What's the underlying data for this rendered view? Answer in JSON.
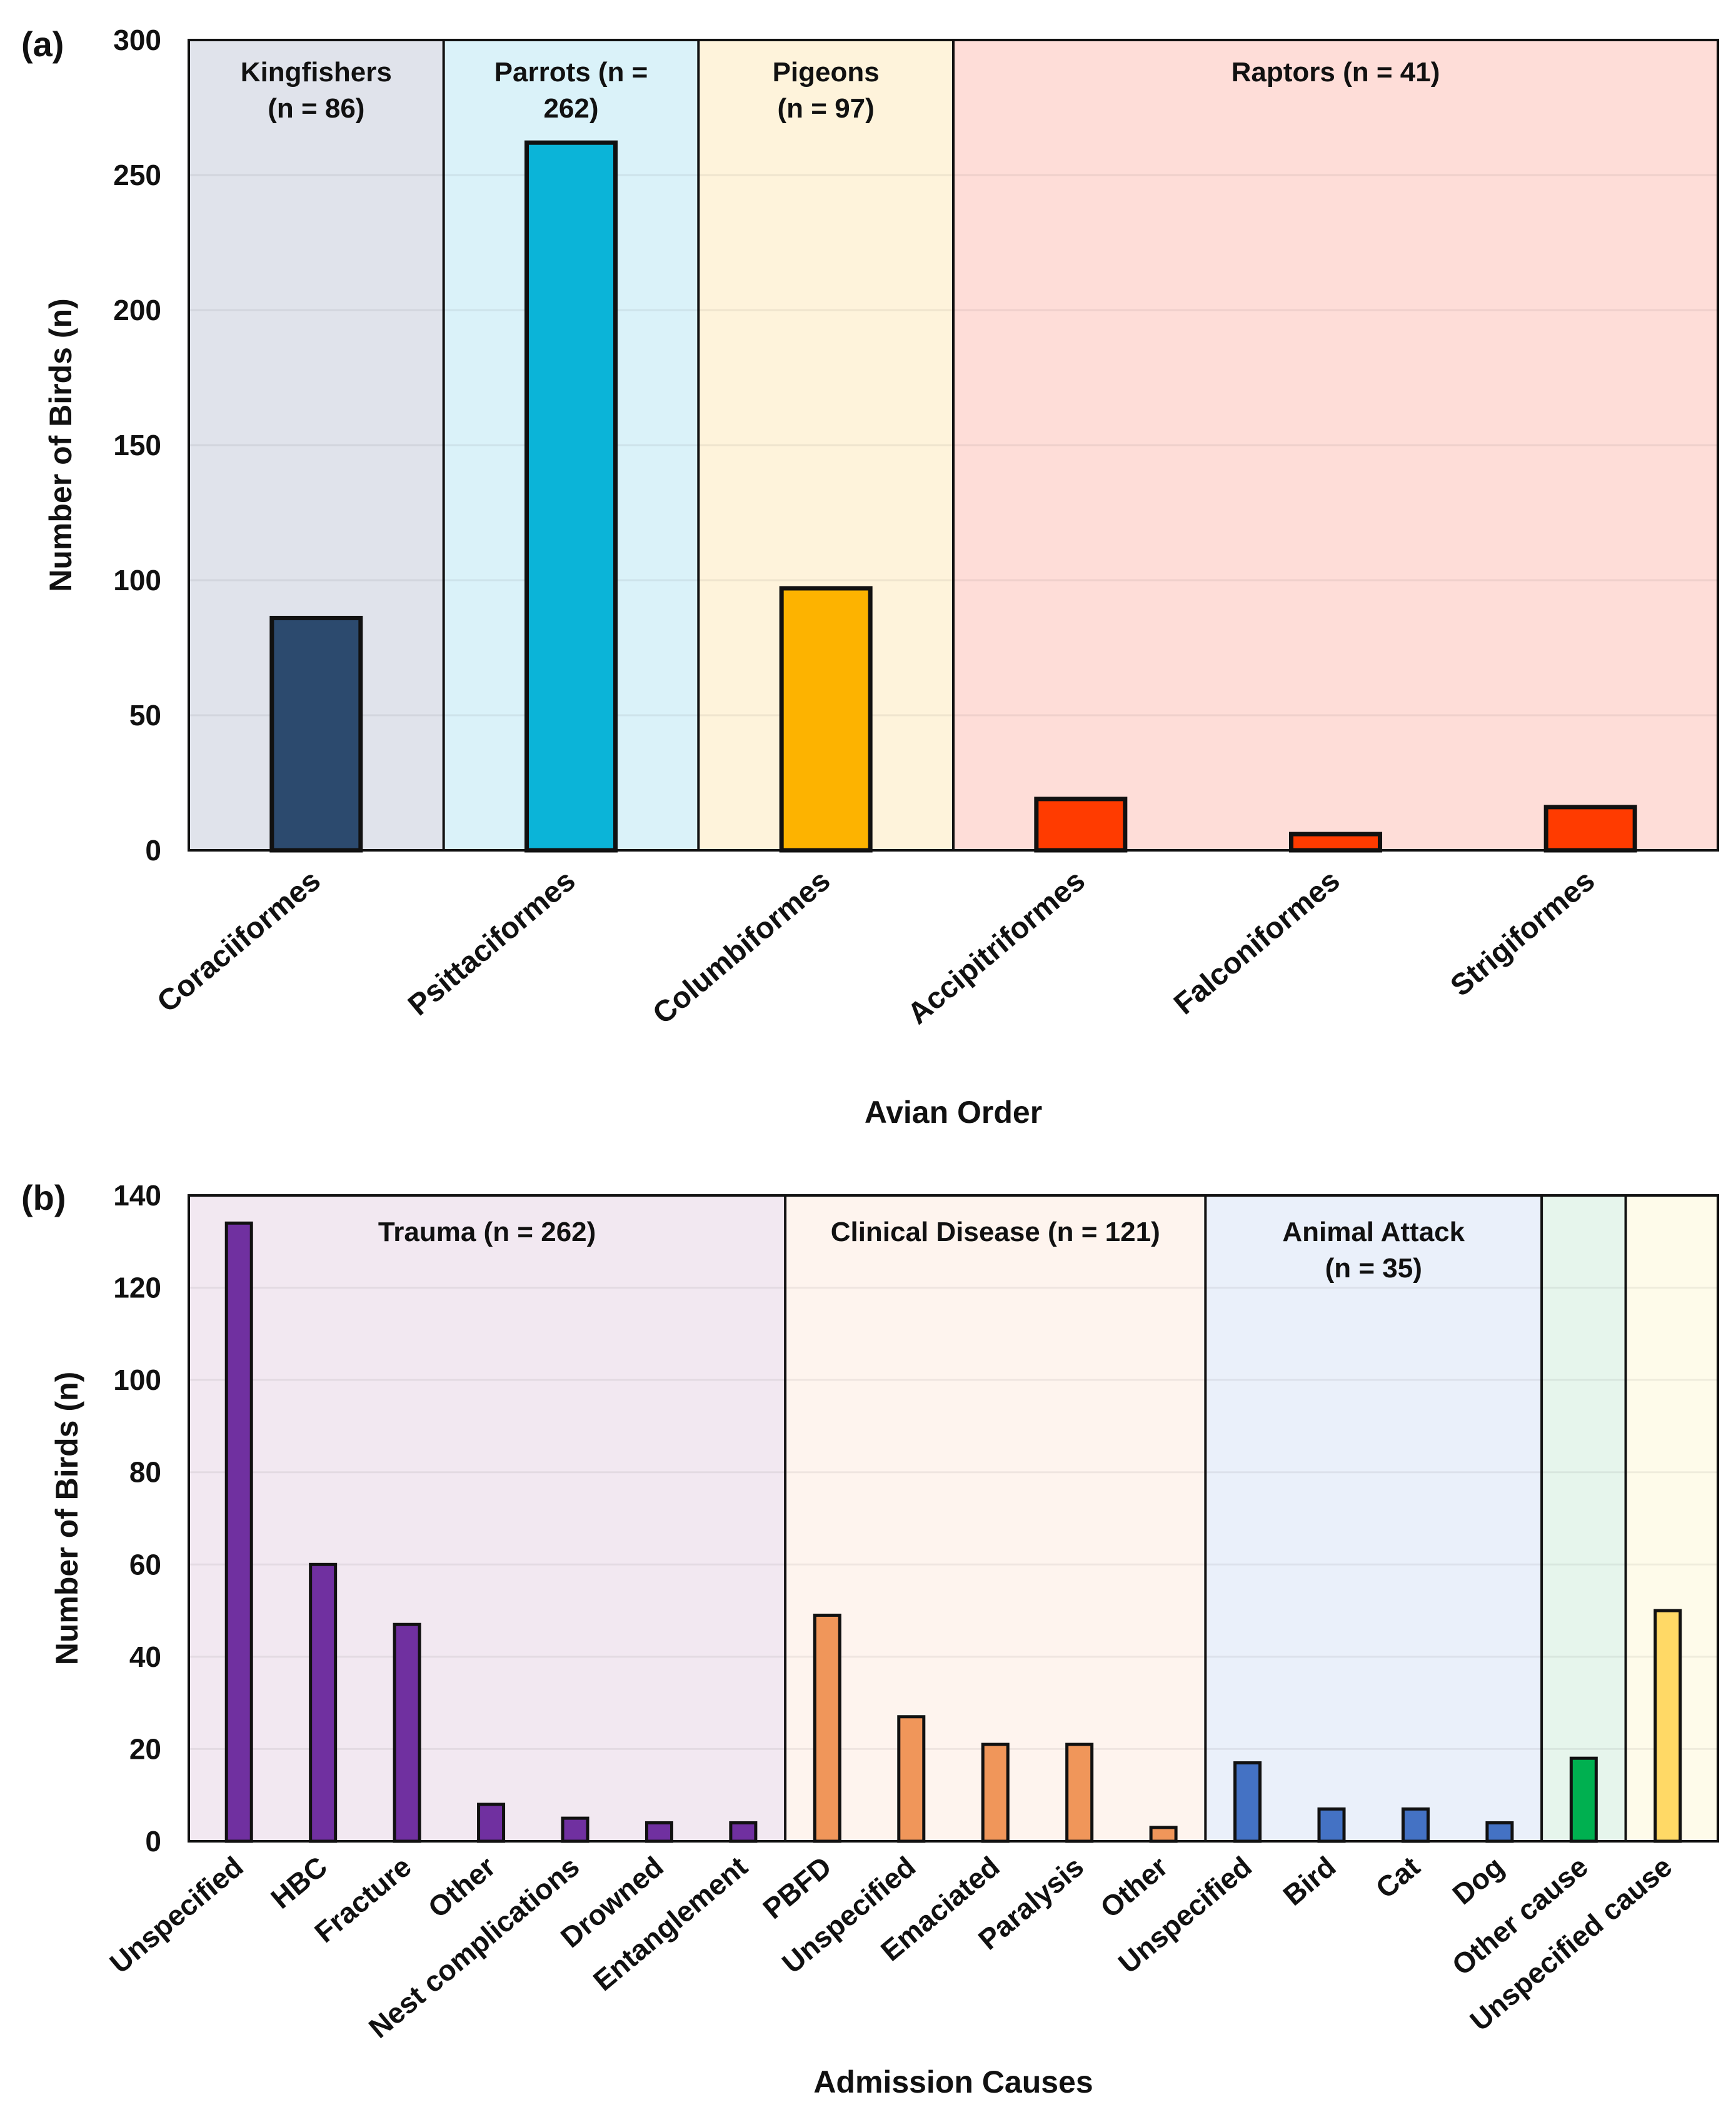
{
  "chart_data": [
    {
      "panel_label": "(a)",
      "type": "bar",
      "xlabel": "Avian Order",
      "ylabel": "Number of Birds (n)",
      "ylim": [
        0,
        300
      ],
      "yticks": [
        "0",
        "50",
        "100",
        "150",
        "200",
        "250",
        "300"
      ],
      "categories": [
        "Coraciiformes",
        "Psittaciformes",
        "Columbiformes",
        "Accipitriformes",
        "Falconiformes",
        "Strigiformes"
      ],
      "values": [
        86,
        262,
        97,
        19,
        6,
        16
      ],
      "bar_colors": [
        "#2C4A6E",
        "#0BB4D8",
        "#FDB300",
        "#FF3B00",
        "#FF3B00",
        "#FF3B00"
      ],
      "groups": [
        {
          "label_lines": [
            "Kingfishers",
            "(n = 86)"
          ],
          "count": 1,
          "bg": "#E0E3EB"
        },
        {
          "label_lines": [
            "Parrots (n =",
            "262)"
          ],
          "count": 1,
          "bg": "#DAF2F9"
        },
        {
          "label_lines": [
            "Pigeons",
            "(n = 97)"
          ],
          "count": 1,
          "bg": "#FEF3DB"
        },
        {
          "label_lines": [
            "Raptors (n = 41)"
          ],
          "count": 3,
          "bg": "#FEDDD8"
        }
      ]
    },
    {
      "panel_label": "(b)",
      "type": "bar",
      "xlabel": "Admission Causes",
      "ylabel": "Number of Birds (n)",
      "ylim": [
        0,
        140
      ],
      "yticks": [
        "0",
        "20",
        "40",
        "60",
        "80",
        "100",
        "120",
        "140"
      ],
      "categories": [
        "Unspecified",
        "HBC",
        "Fracture",
        "Other",
        "Nest complications",
        "Drowned",
        "Entanglement",
        "PBFD",
        "Unspecified",
        "Emaciated",
        "Paralysis",
        "Other",
        "Unspecified",
        "Bird",
        "Cat",
        "Dog",
        "Other cause",
        "Unspecified cause"
      ],
      "values": [
        134,
        60,
        47,
        8,
        5,
        4,
        4,
        49,
        27,
        21,
        21,
        3,
        17,
        7,
        7,
        4,
        18,
        50
      ],
      "bar_colors": [
        "#7030A0",
        "#7030A0",
        "#7030A0",
        "#7030A0",
        "#7030A0",
        "#7030A0",
        "#7030A0",
        "#F0965A",
        "#F0965A",
        "#F0965A",
        "#F0965A",
        "#F0965A",
        "#4472C4",
        "#4472C4",
        "#4472C4",
        "#4472C4",
        "#00B050",
        "#FFD966"
      ],
      "groups": [
        {
          "label_lines": [
            "Trauma (n = 262)"
          ],
          "count": 7,
          "bg": "#F2E8F1"
        },
        {
          "label_lines": [
            "Clinical Disease (n = 121)"
          ],
          "count": 5,
          "bg": "#FEF4EE"
        },
        {
          "label_lines": [
            "Animal Attack",
            "(n = 35)"
          ],
          "count": 4,
          "bg": "#EAF0FA"
        },
        {
          "label_lines": [],
          "count": 1,
          "bg": "#E6F5EC"
        },
        {
          "label_lines": [],
          "count": 1,
          "bg": "#FEFBEA"
        }
      ]
    }
  ]
}
